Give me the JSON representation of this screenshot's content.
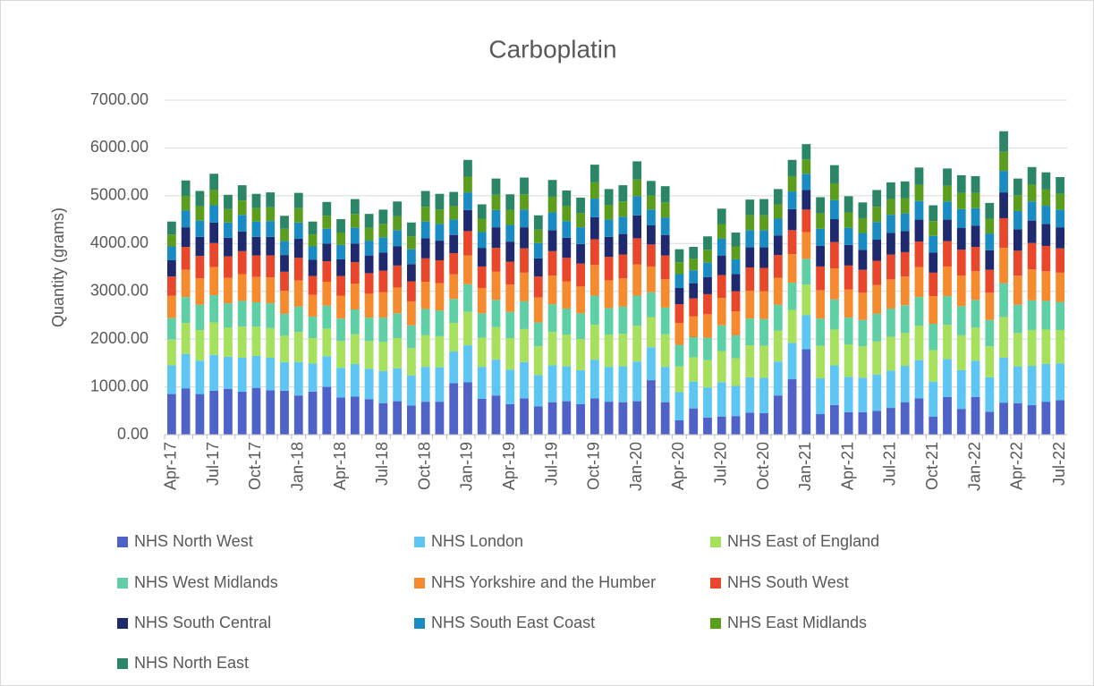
{
  "chart_data": {
    "type": "stacked_bar",
    "title": "Carboplatin",
    "y_label": "Quantity (grams)",
    "categories": [
      "Apr-17",
      null,
      null,
      "Jul-17",
      null,
      null,
      "Oct-17",
      null,
      null,
      "Jan-18",
      null,
      null,
      "Apr-18",
      null,
      null,
      "Jul-18",
      null,
      null,
      "Oct-18",
      null,
      null,
      "Jan-19",
      null,
      null,
      "Apr-19",
      null,
      null,
      "Jul-19",
      null,
      null,
      "Oct-19",
      null,
      null,
      "Jan-20",
      null,
      null,
      "Apr-20",
      null,
      null,
      "Jul-20",
      null,
      null,
      "Oct-20",
      null,
      null,
      "Jan-21",
      null,
      null,
      "Apr-21",
      null,
      null,
      "Jul-21",
      null,
      null,
      "Oct-21",
      null,
      null,
      "Jan-22",
      null,
      null,
      "Apr-22",
      null,
      null,
      "Jul-22"
    ],
    "ylim": [
      0,
      7000
    ],
    "yticks": [
      {
        "value": 0,
        "label": "0.00"
      },
      {
        "value": 1000,
        "label": "1000.00"
      },
      {
        "value": 2000,
        "label": "2000.00"
      },
      {
        "value": 3000,
        "label": "3000.00"
      },
      {
        "value": 4000,
        "label": "4000.00"
      },
      {
        "value": 5000,
        "label": "5000.00"
      },
      {
        "value": 6000,
        "label": "6000.00"
      },
      {
        "value": 7000,
        "label": "7000.00"
      }
    ],
    "grid": true,
    "legend": "bottom",
    "series": [
      {
        "name": "NHS North West",
        "color": "#4e62c8",
        "values": [
          850,
          970,
          850,
          920,
          960,
          900,
          980,
          930,
          920,
          820,
          900,
          1000,
          780,
          800,
          740,
          660,
          700,
          610,
          690,
          690,
          1080,
          1100,
          750,
          820,
          640,
          760,
          590,
          680,
          700,
          640,
          760,
          690,
          680,
          700,
          1140,
          680,
          300,
          550,
          360,
          380,
          390,
          460,
          450,
          820,
          1160,
          1790,
          430,
          620,
          470,
          470,
          500,
          560,
          680,
          760,
          380,
          790,
          540,
          790,
          480,
          670,
          660,
          620,
          690,
          720
        ]
      },
      {
        "name": "NHS London",
        "color": "#5ec6f2",
        "values": [
          600,
          720,
          700,
          750,
          670,
          710,
          670,
          680,
          600,
          700,
          590,
          640,
          620,
          680,
          640,
          670,
          690,
          630,
          730,
          720,
          660,
          770,
          670,
          750,
          720,
          760,
          660,
          770,
          730,
          710,
          810,
          730,
          750,
          830,
          690,
          740,
          590,
          560,
          630,
          720,
          630,
          740,
          740,
          710,
          760,
          710,
          750,
          830,
          740,
          720,
          760,
          780,
          760,
          800,
          730,
          790,
          810,
          760,
          720,
          940,
          770,
          820,
          790,
          770
        ]
      },
      {
        "name": "NHS East of England",
        "color": "#a6e05c",
        "values": [
          540,
          650,
          640,
          680,
          610,
          650,
          610,
          620,
          550,
          630,
          530,
          580,
          560,
          620,
          580,
          610,
          630,
          570,
          660,
          650,
          600,
          700,
          610,
          680,
          660,
          690,
          600,
          700,
          660,
          650,
          730,
          670,
          680,
          750,
          630,
          680,
          540,
          510,
          570,
          650,
          580,
          670,
          670,
          650,
          690,
          640,
          680,
          750,
          680,
          660,
          690,
          710,
          690,
          720,
          660,
          720,
          730,
          690,
          650,
          850,
          700,
          750,
          720,
          700
        ]
      },
      {
        "name": "NHS West Midlands",
        "color": "#5fd0a5",
        "values": [
          450,
          540,
          530,
          570,
          510,
          540,
          510,
          520,
          460,
          530,
          450,
          480,
          470,
          520,
          490,
          510,
          520,
          480,
          550,
          540,
          500,
          580,
          510,
          570,
          550,
          580,
          500,
          580,
          550,
          540,
          610,
          560,
          570,
          630,
          520,
          560,
          450,
          420,
          470,
          540,
          480,
          560,
          560,
          540,
          570,
          540,
          570,
          630,
          560,
          550,
          580,
          590,
          580,
          600,
          550,
          600,
          610,
          580,
          550,
          710,
          590,
          620,
          600,
          590
        ]
      },
      {
        "name": "NHS Yorkshire and the Humber",
        "color": "#f58a2f",
        "values": [
          470,
          570,
          550,
          590,
          530,
          560,
          530,
          540,
          480,
          550,
          460,
          500,
          480,
          540,
          500,
          530,
          540,
          500,
          570,
          570,
          520,
          600,
          530,
          590,
          570,
          600,
          520,
          600,
          570,
          560,
          640,
          580,
          590,
          650,
          540,
          590,
          460,
          440,
          490,
          570,
          500,
          580,
          580,
          560,
          600,
          560,
          590,
          650,
          590,
          570,
          600,
          610,
          600,
          630,
          580,
          620,
          640,
          600,
          570,
          740,
          610,
          650,
          620,
          610
        ]
      },
      {
        "name": "NHS South West",
        "color": "#e8472b",
        "values": [
          400,
          480,
          470,
          500,
          450,
          480,
          450,
          460,
          400,
          470,
          390,
          430,
          410,
          450,
          430,
          450,
          460,
          420,
          490,
          480,
          440,
          510,
          450,
          500,
          480,
          510,
          440,
          510,
          490,
          480,
          540,
          490,
          500,
          550,
          460,
          500,
          390,
          370,
          420,
          480,
          420,
          490,
          490,
          480,
          500,
          470,
          500,
          550,
          500,
          480,
          510,
          520,
          510,
          530,
          490,
          530,
          540,
          510,
          480,
          620,
          520,
          550,
          530,
          510
        ]
      },
      {
        "name": "NHS South Central",
        "color": "#1f2a6e",
        "values": [
          340,
          410,
          400,
          430,
          390,
          410,
          390,
          390,
          350,
          400,
          340,
          370,
          350,
          390,
          370,
          380,
          400,
          360,
          420,
          410,
          380,
          440,
          390,
          430,
          420,
          440,
          380,
          440,
          420,
          410,
          460,
          420,
          430,
          480,
          400,
          430,
          340,
          320,
          360,
          410,
          360,
          420,
          430,
          410,
          440,
          410,
          430,
          480,
          430,
          420,
          440,
          450,
          440,
          460,
          420,
          450,
          460,
          440,
          410,
          540,
          450,
          470,
          460,
          440
        ]
      },
      {
        "name": "NHS South East Coast",
        "color": "#1a8cc4",
        "values": [
          290,
          350,
          340,
          360,
          320,
          350,
          320,
          330,
          290,
          340,
          280,
          310,
          300,
          330,
          310,
          320,
          340,
          310,
          350,
          350,
          320,
          370,
          330,
          360,
          350,
          370,
          320,
          370,
          350,
          350,
          390,
          360,
          360,
          400,
          330,
          360,
          290,
          270,
          300,
          350,
          310,
          360,
          360,
          350,
          370,
          340,
          360,
          400,
          360,
          350,
          370,
          380,
          370,
          390,
          350,
          380,
          390,
          370,
          350,
          450,
          380,
          400,
          380,
          370
        ]
      },
      {
        "name": "NHS East Midlands",
        "color": "#5b9e1d",
        "values": [
          250,
          300,
          300,
          320,
          280,
          300,
          280,
          290,
          260,
          300,
          250,
          270,
          260,
          290,
          270,
          280,
          290,
          270,
          310,
          300,
          280,
          330,
          280,
          320,
          310,
          320,
          280,
          330,
          310,
          300,
          340,
          310,
          320,
          350,
          290,
          320,
          250,
          240,
          270,
          300,
          270,
          310,
          310,
          300,
          320,
          300,
          320,
          350,
          320,
          310,
          320,
          330,
          320,
          340,
          310,
          330,
          340,
          320,
          310,
          400,
          330,
          350,
          340,
          330
        ]
      },
      {
        "name": "NHS North East",
        "color": "#2a8666",
        "values": [
          270,
          330,
          320,
          340,
          300,
          320,
          300,
          310,
          270,
          320,
          270,
          290,
          280,
          310,
          290,
          300,
          310,
          290,
          330,
          330,
          300,
          350,
          300,
          340,
          330,
          350,
          300,
          350,
          330,
          320,
          370,
          330,
          340,
          380,
          310,
          340,
          270,
          250,
          280,
          330,
          290,
          330,
          340,
          320,
          340,
          320,
          340,
          380,
          340,
          330,
          350,
          350,
          350,
          360,
          330,
          360,
          370,
          350,
          330,
          430,
          350,
          370,
          360,
          350
        ]
      }
    ]
  }
}
